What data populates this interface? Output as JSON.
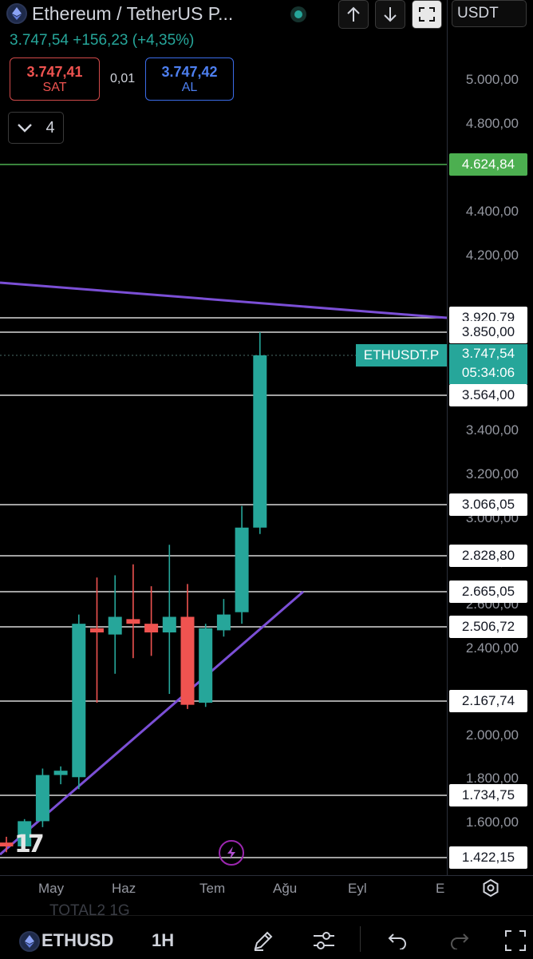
{
  "header": {
    "title": "Ethereum / TetherUS P...",
    "up_icon": "arrow-up-icon",
    "down_icon": "arrow-down-icon",
    "expand_icon": "expand-icon",
    "currency": "USDT",
    "last_price": "3.747,54",
    "change": "+156,23",
    "change_pct": "(+4,35%)",
    "colors": {
      "positive": "#26a69a",
      "negative": "#ef5350",
      "buy": "#4d7ff0"
    }
  },
  "trade": {
    "sell_price": "3.747,41",
    "sell_label": "SAT",
    "spread": "0,01",
    "buy_price": "3.747,42",
    "buy_label": "AL"
  },
  "indicators": {
    "toggle_icon": "chevron-down-icon",
    "count": "4"
  },
  "chart_data": {
    "type": "candlestick",
    "symbol": "ETHUSDT.P",
    "interval": "1H",
    "y_axis": {
      "ticks": [
        1600,
        1800,
        2000,
        2400,
        2600,
        2800,
        3000,
        3200,
        3400,
        4200,
        4400,
        4800,
        5000
      ],
      "tick_labels": [
        "1.600,00",
        "1.800,00",
        "2.000,00",
        "2.400,00",
        "2.600,00",
        "2.800,00",
        "3.000,00",
        "3.200,00",
        "3.400,00",
        "4.200,00",
        "4.400,00",
        "4.800,00",
        "5.000,00"
      ],
      "range": [
        1410,
        5260
      ]
    },
    "x_axis": {
      "labels": [
        "May",
        "Haz",
        "Tem",
        "Ağu",
        "Eyl",
        "E"
      ]
    },
    "candles": [
      {
        "o": 1500,
        "h": 1530,
        "l": 1450,
        "c": 1480
      },
      {
        "o": 1480,
        "h": 1620,
        "l": 1460,
        "c": 1610
      },
      {
        "o": 1610,
        "h": 1850,
        "l": 1580,
        "c": 1820
      },
      {
        "o": 1820,
        "h": 1860,
        "l": 1780,
        "c": 1840
      },
      {
        "o": 1810,
        "h": 2560,
        "l": 1760,
        "c": 2520
      },
      {
        "o": 2500,
        "h": 2730,
        "l": 2160,
        "c": 2480
      },
      {
        "o": 2470,
        "h": 2740,
        "l": 2290,
        "c": 2550
      },
      {
        "o": 2540,
        "h": 2790,
        "l": 2360,
        "c": 2520
      },
      {
        "o": 2520,
        "h": 2690,
        "l": 2370,
        "c": 2480
      },
      {
        "o": 2480,
        "h": 2880,
        "l": 2200,
        "c": 2550
      },
      {
        "o": 2550,
        "h": 2700,
        "l": 2130,
        "c": 2150
      },
      {
        "o": 2160,
        "h": 2520,
        "l": 2140,
        "c": 2500
      },
      {
        "o": 2490,
        "h": 2630,
        "l": 2460,
        "c": 2560
      },
      {
        "o": 2570,
        "h": 3060,
        "l": 2520,
        "c": 2960
      },
      {
        "o": 2960,
        "h": 3850,
        "l": 2930,
        "c": 3747.54
      }
    ],
    "horizontal_levels": [
      {
        "value": 3920.79,
        "label": "3.920,79"
      },
      {
        "value": 3850,
        "label": "3.850,00"
      },
      {
        "value": 3564,
        "label": "3.564,00"
      },
      {
        "value": 3066.05,
        "label": "3.066,05"
      },
      {
        "value": 2828.8,
        "label": "2.828,80"
      },
      {
        "value": 2665.05,
        "label": "2.665,05"
      },
      {
        "value": 2506.72,
        "label": "2.506,72"
      },
      {
        "value": 2167.74,
        "label": "2.167,74"
      },
      {
        "value": 1734.75,
        "label": "1.734,75"
      },
      {
        "value": 1422.15,
        "label": "1.422,15"
      }
    ],
    "green_level": {
      "value": 4624.84,
      "label": "4.624,84",
      "color": "#4caf50"
    },
    "trendlines": [
      {
        "name": "upper",
        "from": 4080,
        "to": 3920.79,
        "color": "#7b4fd6"
      },
      {
        "name": "lower",
        "from": 1430,
        "to": 2665.05,
        "color": "#7b4fd6"
      }
    ],
    "current_price": {
      "value": 3747.54,
      "label": "3.747,54",
      "countdown": "05:34:06",
      "tag": "ETHUSDT.P",
      "color": "#26a69a"
    },
    "grid": false
  },
  "overlay": {
    "flash_icon": "lightning-icon",
    "logo": "tradingview-logo-icon"
  },
  "time_axis": {
    "settings_icon": "settings-icon"
  },
  "ghost_text": "TOTAL2    1G",
  "bottombar": {
    "symbol": "ETHUSD",
    "interval": "1H",
    "icons": [
      "pencil-icon",
      "sliders-icon",
      "undo-icon",
      "redo-icon",
      "fullscreen-icon"
    ]
  }
}
